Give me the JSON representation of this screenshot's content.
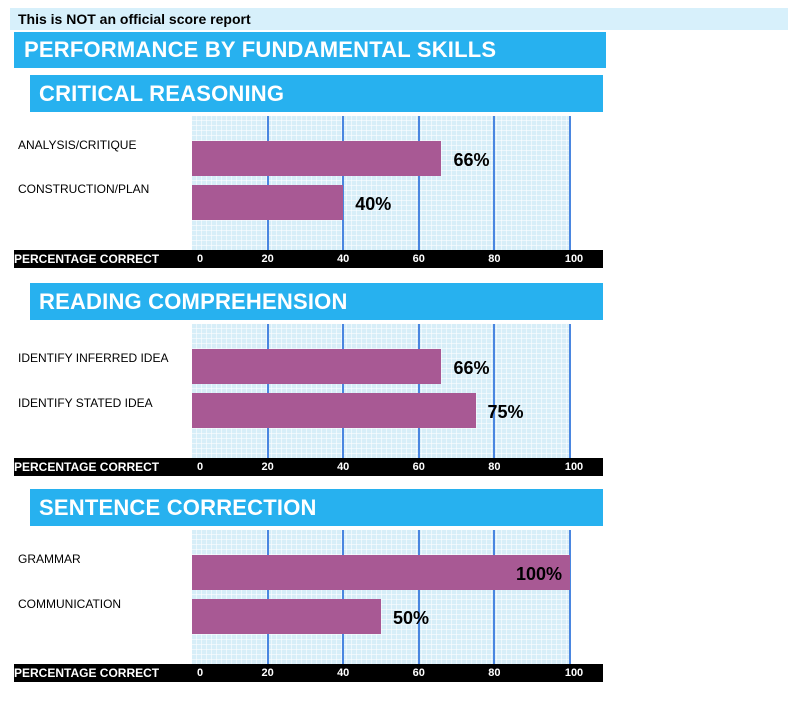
{
  "notice": "This is NOT an official score report",
  "title": "PERFORMANCE BY FUNDAMENTAL SKILLS",
  "chart_data": [
    {
      "type": "bar",
      "orientation": "horizontal",
      "title": "CRITICAL REASONING",
      "categories": [
        "ANALYSIS/CRITIQUE",
        "CONSTRUCTION/PLAN"
      ],
      "values": [
        66,
        40
      ],
      "value_labels": [
        "66%",
        "40%"
      ],
      "xlabel": "PERCENTAGE CORRECT",
      "xticks": [
        "0",
        "20",
        "40",
        "60",
        "80",
        "100"
      ],
      "xlim": [
        0,
        100
      ]
    },
    {
      "type": "bar",
      "orientation": "horizontal",
      "title": "READING COMPREHENSION",
      "categories": [
        "IDENTIFY INFERRED IDEA",
        "IDENTIFY STATED IDEA"
      ],
      "values": [
        66,
        75
      ],
      "value_labels": [
        "66%",
        "75%"
      ],
      "xlabel": "PERCENTAGE CORRECT",
      "xticks": [
        "0",
        "20",
        "40",
        "60",
        "80",
        "100"
      ],
      "xlim": [
        0,
        100
      ]
    },
    {
      "type": "bar",
      "orientation": "horizontal",
      "title": "SENTENCE CORRECTION",
      "categories": [
        "GRAMMAR",
        "COMMUNICATION"
      ],
      "values": [
        100,
        50
      ],
      "value_labels": [
        "100%",
        "50%"
      ],
      "xlabel": "PERCENTAGE CORRECT",
      "xticks": [
        "0",
        "20",
        "40",
        "60",
        "80",
        "100"
      ],
      "xlim": [
        0,
        100
      ]
    }
  ]
}
